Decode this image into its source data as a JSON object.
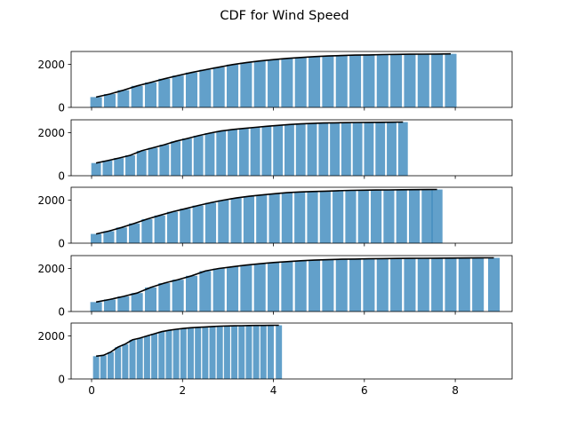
{
  "chart_data": {
    "type": "bar",
    "title": "CDF for Wind Speed",
    "xlabel": "",
    "ylabel": "",
    "xlim": [
      -0.45,
      9.25
    ],
    "shared_x": true,
    "x_ticks": [
      0,
      2,
      4,
      6,
      8
    ],
    "x_tick_labels": [
      "0",
      "2",
      "4",
      "6",
      "8"
    ],
    "grid": false,
    "legend": "none",
    "colors": {
      "bars": "#1f77b4",
      "line": "#000000"
    },
    "panels": [
      {
        "ylim": [
          0,
          2600
        ],
        "y_ticks": [
          0,
          2000
        ],
        "y_tick_labels": [
          "0",
          "2000"
        ],
        "x": [
          0.1,
          0.4,
          0.7,
          1.0,
          1.3,
          1.6,
          1.9,
          2.2,
          2.5,
          2.8,
          3.1,
          3.4,
          3.7,
          4.0,
          4.3,
          4.6,
          4.9,
          5.2,
          5.5,
          5.8,
          6.1,
          6.4,
          6.7,
          7.0,
          7.3,
          7.6,
          7.9
        ],
        "values": [
          480,
          620,
          800,
          1000,
          1160,
          1330,
          1480,
          1620,
          1750,
          1870,
          1990,
          2080,
          2160,
          2220,
          2280,
          2320,
          2360,
          2390,
          2410,
          2430,
          2440,
          2455,
          2465,
          2472,
          2478,
          2482,
          2490
        ]
      },
      {
        "ylim": [
          0,
          2600
        ],
        "y_ticks": [
          0,
          2000
        ],
        "y_tick_labels": [
          "0",
          "2000"
        ],
        "x": [
          0.1,
          0.35,
          0.6,
          0.85,
          1.1,
          1.35,
          1.6,
          1.85,
          2.1,
          2.35,
          2.6,
          2.85,
          3.1,
          3.35,
          3.6,
          3.85,
          4.1,
          4.35,
          4.6,
          4.85,
          5.1,
          5.35,
          5.6,
          5.85,
          6.1,
          6.35,
          6.6,
          6.85
        ],
        "values": [
          590,
          700,
          820,
          950,
          1160,
          1300,
          1440,
          1600,
          1730,
          1860,
          1980,
          2080,
          2150,
          2200,
          2250,
          2300,
          2340,
          2380,
          2410,
          2430,
          2450,
          2460,
          2470,
          2475,
          2480,
          2485,
          2490,
          2495
        ]
      },
      {
        "ylim": [
          0,
          2600
        ],
        "y_ticks": [
          0,
          2000
        ],
        "y_tick_labels": [
          "0",
          "2000"
        ],
        "x": [
          0.1,
          0.38,
          0.66,
          0.94,
          1.22,
          1.5,
          1.78,
          2.06,
          2.34,
          2.62,
          2.9,
          3.18,
          3.46,
          3.74,
          4.02,
          4.3,
          4.58,
          4.86,
          5.14,
          5.42,
          5.7,
          5.98,
          6.26,
          6.54,
          6.82,
          7.1,
          7.38,
          7.6
        ],
        "values": [
          430,
          560,
          730,
          920,
          1120,
          1290,
          1460,
          1600,
          1750,
          1880,
          2000,
          2100,
          2180,
          2240,
          2300,
          2350,
          2380,
          2400,
          2420,
          2440,
          2455,
          2465,
          2472,
          2478,
          2483,
          2487,
          2492,
          2495
        ]
      },
      {
        "ylim": [
          0,
          2600
        ],
        "y_ticks": [
          0,
          2000
        ],
        "y_tick_labels": [
          "0",
          "2000"
        ],
        "x": [
          0.1,
          0.4,
          0.7,
          1.0,
          1.3,
          1.6,
          1.9,
          2.2,
          2.5,
          2.8,
          3.1,
          3.4,
          3.7,
          4.0,
          4.3,
          4.6,
          4.9,
          5.2,
          5.5,
          5.8,
          6.1,
          6.4,
          6.7,
          7.0,
          7.3,
          7.6,
          7.9,
          8.2,
          8.5,
          8.85
        ],
        "values": [
          440,
          560,
          700,
          860,
          1120,
          1320,
          1480,
          1660,
          1880,
          2000,
          2080,
          2160,
          2220,
          2280,
          2320,
          2360,
          2390,
          2410,
          2430,
          2440,
          2450,
          2460,
          2466,
          2472,
          2478,
          2482,
          2486,
          2490,
          2493,
          2496
        ]
      },
      {
        "ylim": [
          0,
          2600
        ],
        "y_ticks": [
          0,
          2000
        ],
        "y_tick_labels": [
          "0",
          "2000"
        ],
        "x": [
          0.1,
          0.26,
          0.42,
          0.58,
          0.74,
          0.9,
          1.06,
          1.22,
          1.38,
          1.54,
          1.7,
          1.86,
          2.02,
          2.18,
          2.34,
          2.5,
          2.66,
          2.82,
          2.98,
          3.14,
          3.3,
          3.46,
          3.62,
          3.78,
          3.94,
          4.12
        ],
        "values": [
          1060,
          1100,
          1250,
          1480,
          1620,
          1820,
          1900,
          2000,
          2100,
          2200,
          2260,
          2310,
          2350,
          2380,
          2400,
          2420,
          2440,
          2455,
          2465,
          2472,
          2478,
          2483,
          2487,
          2490,
          2493,
          2495
        ]
      }
    ]
  }
}
